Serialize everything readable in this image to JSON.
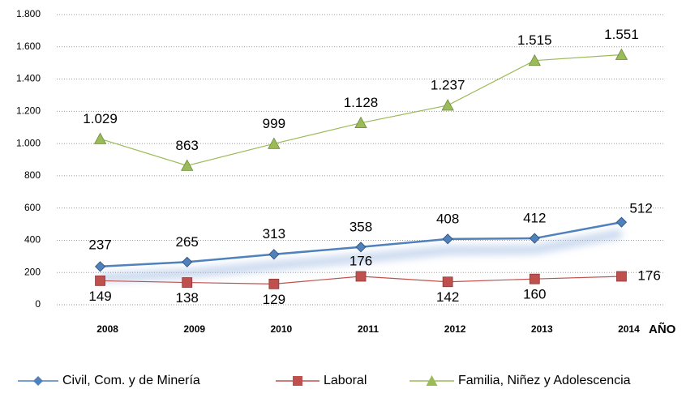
{
  "chart_data": {
    "type": "line",
    "categories": [
      "2008",
      "2009",
      "2010",
      "2011",
      "2012",
      "2013",
      "2014"
    ],
    "x_label": "AÑO",
    "series": [
      {
        "name": "Civil, Com. y de Minería",
        "color": "#4f81bd",
        "marker": "diamond",
        "values": [
          237,
          265,
          313,
          358,
          408,
          412,
          512
        ]
      },
      {
        "name": "Laboral",
        "color": "#c0504d",
        "marker": "square",
        "values": [
          149,
          138,
          129,
          176,
          142,
          160,
          176
        ]
      },
      {
        "name": "Familia, Niñez y Adolescencia",
        "color": "#9bbb59",
        "marker": "triangle",
        "values": [
          1029,
          863,
          999,
          1128,
          1237,
          1515,
          1551
        ],
        "value_labels": [
          "1.029",
          "863",
          "999",
          "1.128",
          "1.237",
          "1.515",
          "1.551"
        ]
      }
    ],
    "ylim": [
      0,
      1800
    ],
    "yticks": [
      0,
      200,
      400,
      600,
      800,
      {
        "value": 1000,
        "label": "1.000"
      },
      {
        "value": 1200,
        "label": "1.200"
      },
      {
        "value": 1400,
        "label": "1.400"
      },
      {
        "value": 1600,
        "label": "1.600"
      },
      {
        "value": 1800,
        "label": "1.800"
      }
    ],
    "grid": true,
    "legend": "bottom"
  }
}
